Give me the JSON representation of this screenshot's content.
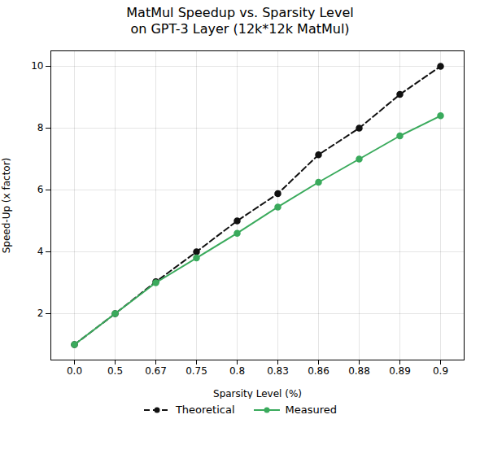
{
  "chart_data": {
    "type": "line",
    "title": "MatMul Speedup vs. Sparsity Level\non GPT-3 Layer (12k*12k MatMul)",
    "xlabel": "Sparsity Level (%)",
    "ylabel": "Speed-Up (x factor)",
    "categories": [
      "0.0",
      "0.5",
      "0.67",
      "0.75",
      "0.8",
      "0.83",
      "0.86",
      "0.88",
      "0.89",
      "0.9"
    ],
    "series": [
      {
        "name": "Theoretical",
        "color": "#111111",
        "line_style": "dashed",
        "marker": "circle",
        "values": [
          1.0,
          2.0,
          3.03,
          4.0,
          5.0,
          5.88,
          7.14,
          8.0,
          9.09,
          10.0
        ]
      },
      {
        "name": "Measured",
        "color": "#3aaa5c",
        "line_style": "solid",
        "marker": "circle",
        "values": [
          1.0,
          2.0,
          3.0,
          3.8,
          4.6,
          5.45,
          6.25,
          7.0,
          7.75,
          8.4
        ]
      }
    ],
    "ylim": [
      0.5,
      10.5
    ],
    "yticks": [
      2,
      4,
      6,
      8,
      10
    ],
    "grid": true,
    "legend": "bottom"
  }
}
